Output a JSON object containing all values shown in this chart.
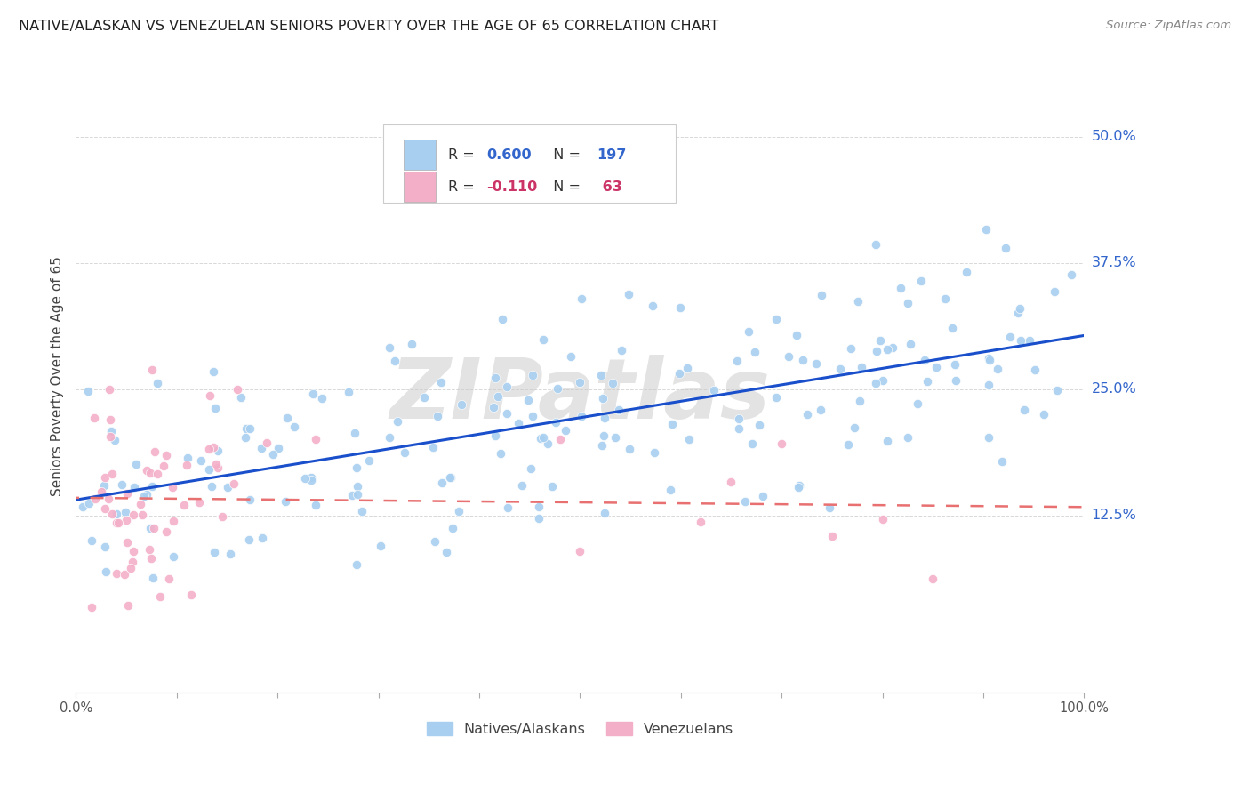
{
  "title": "NATIVE/ALASKAN VS VENEZUELAN SENIORS POVERTY OVER THE AGE OF 65 CORRELATION CHART",
  "source": "Source: ZipAtlas.com",
  "ylabel": "Seniors Poverty Over the Age of 65",
  "ytick_labels": [
    "12.5%",
    "25.0%",
    "37.5%",
    "50.0%"
  ],
  "ytick_values": [
    0.125,
    0.25,
    0.375,
    0.5
  ],
  "xlim": [
    0.0,
    1.0
  ],
  "ylim": [
    -0.05,
    0.575
  ],
  "native_color": "#a8cff0",
  "venezuelan_color": "#f4afc8",
  "native_line_color": "#1a4fcc",
  "venezuelan_line_color": "#e87070",
  "background_color": "#ffffff",
  "grid_color": "#d8d8d8",
  "watermark": "ZIPatlas",
  "native_R": 0.6,
  "native_N": 197,
  "venezuelan_R": -0.11,
  "venezuelan_N": 63,
  "xtick_positions": [
    0.0,
    0.1,
    0.2,
    0.3,
    0.4,
    0.5,
    0.6,
    0.7,
    0.8,
    0.9,
    1.0
  ],
  "xtick_labels": [
    "0.0%",
    "",
    "",
    "",
    "",
    "",
    "",
    "",
    "",
    "",
    "100.0%"
  ]
}
